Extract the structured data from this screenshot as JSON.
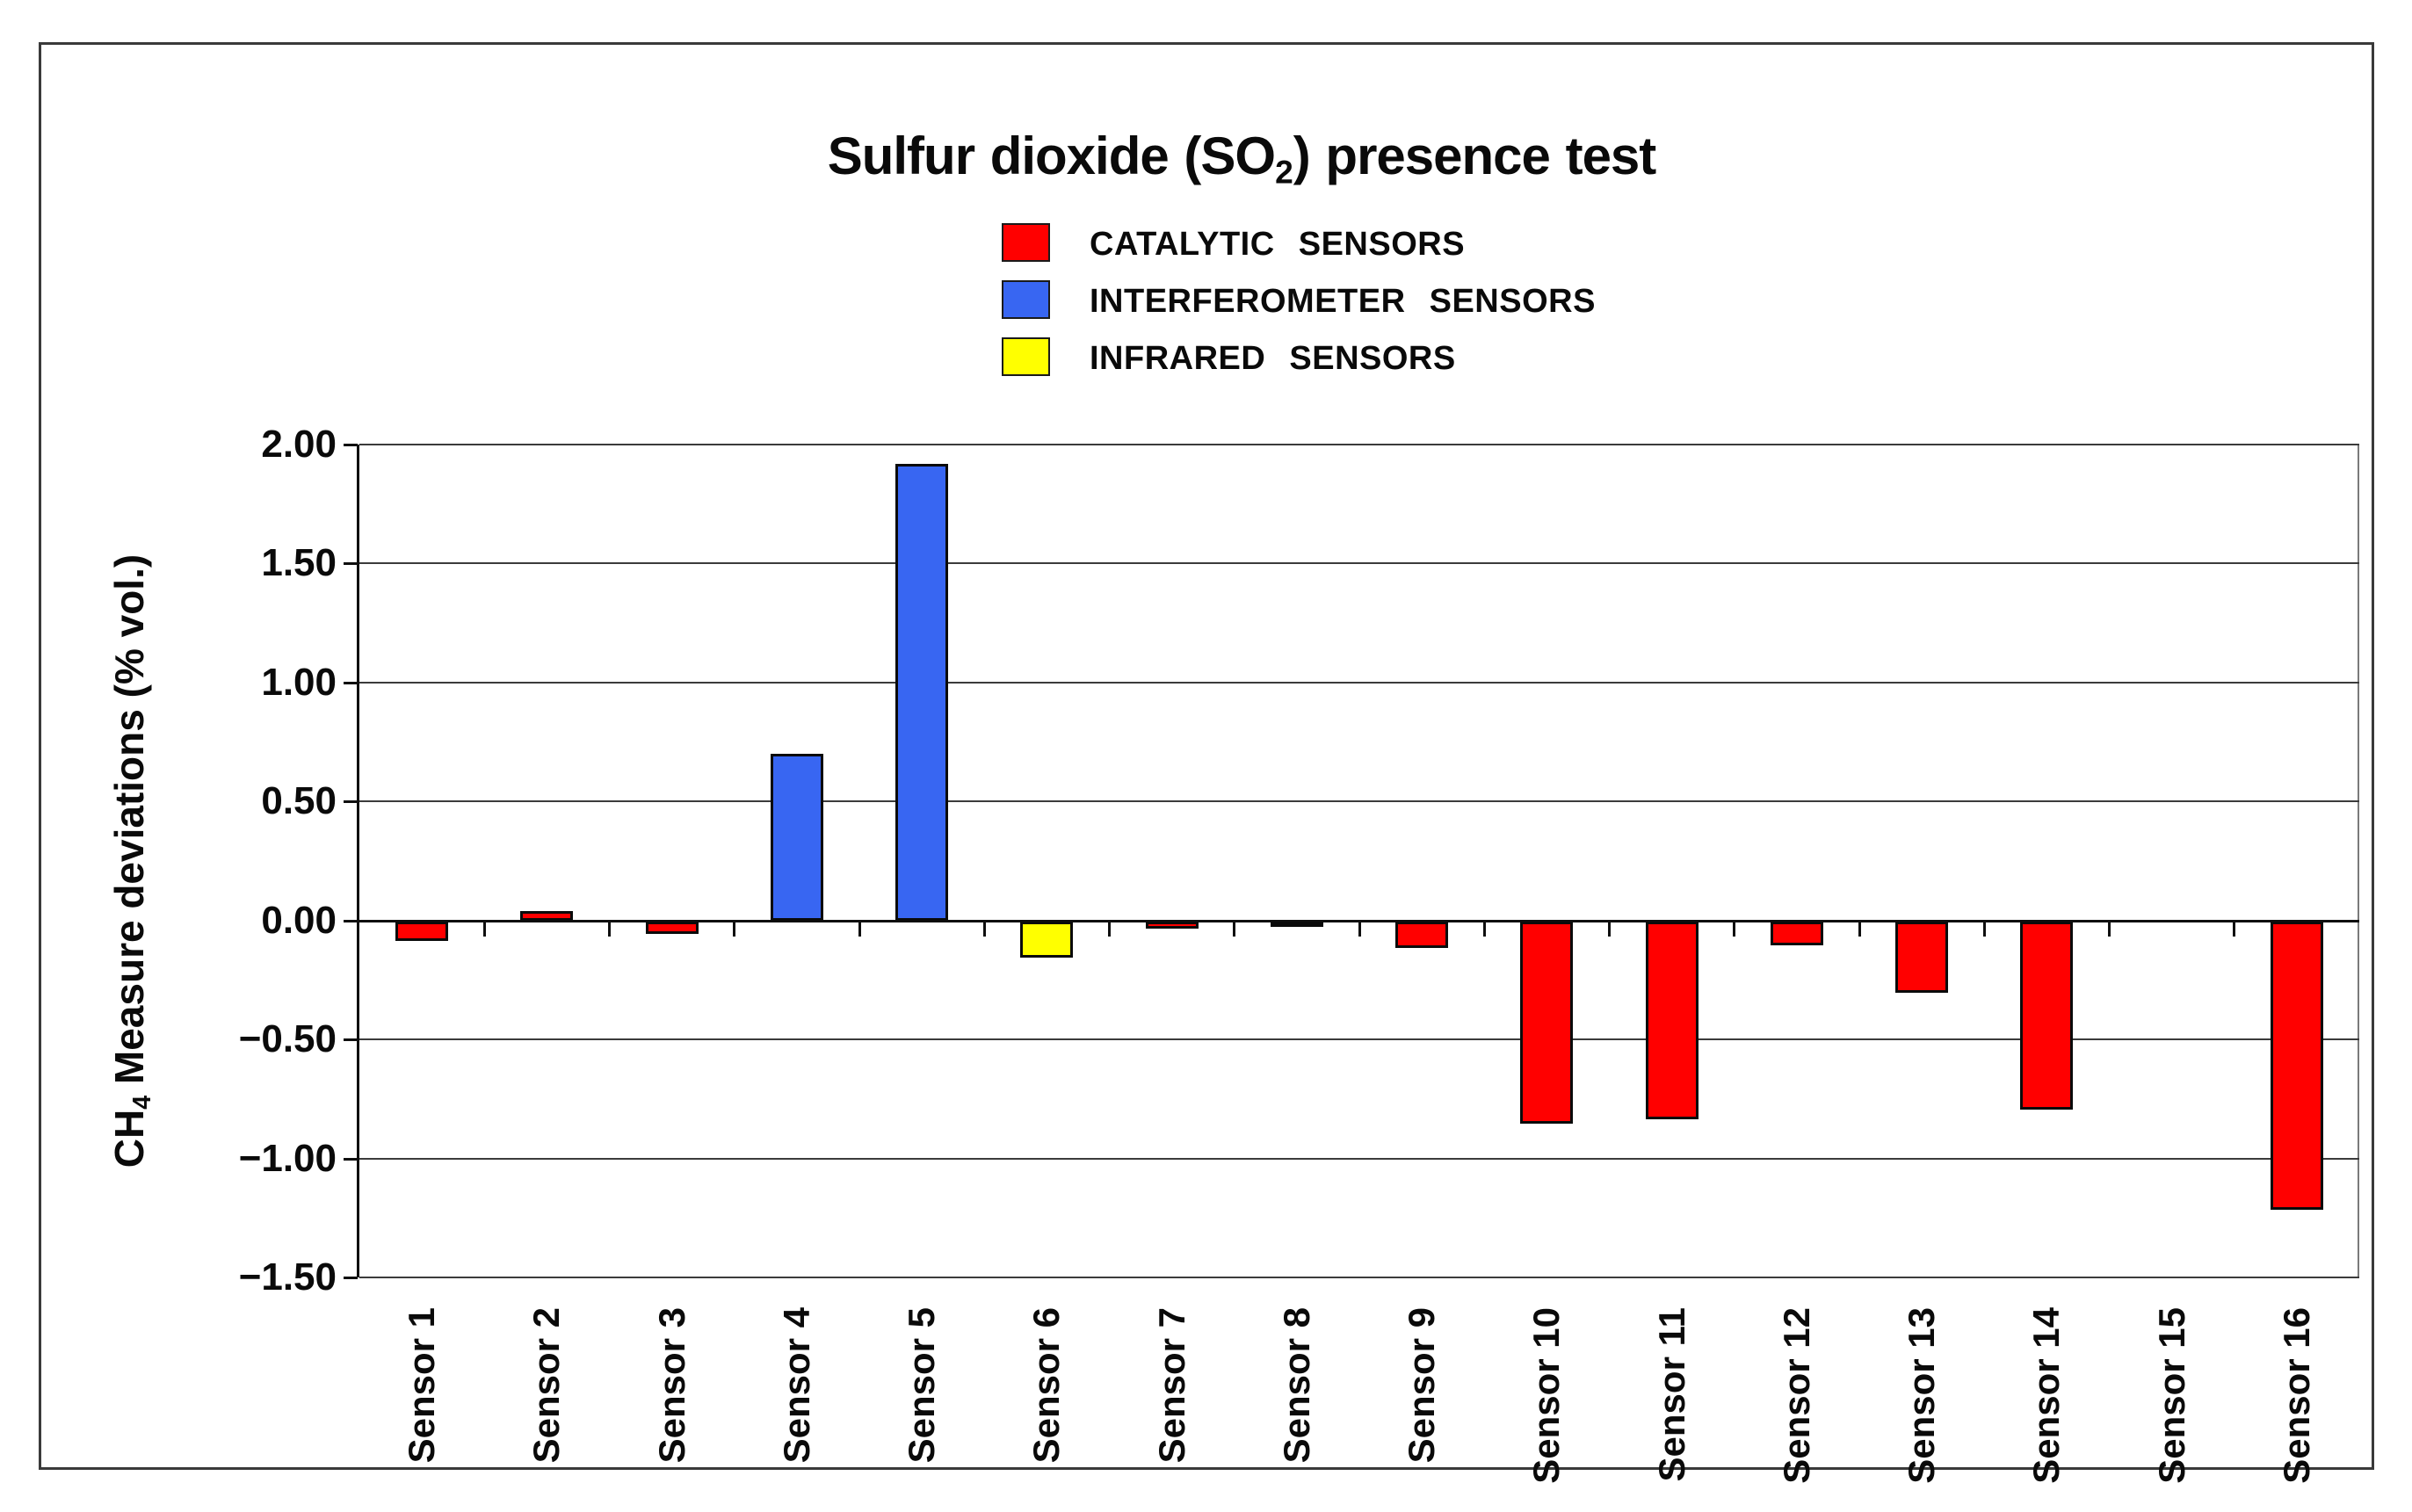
{
  "title": {
    "prefix": "Sulfur dioxide (SO",
    "subscript": "2",
    "suffix": ") presence test"
  },
  "legend": {
    "items": [
      {
        "id": "catalytic",
        "label": "CATALYTIC SENSORS",
        "color": "#FF0000"
      },
      {
        "id": "interferometer",
        "label": "INTERFEROMETER SENSORS",
        "color": "#3866F2"
      },
      {
        "id": "infrared",
        "label": "INFRARED SENSORS",
        "color": "#FFFF00"
      }
    ]
  },
  "y_axis": {
    "title_prefix": "CH",
    "title_subscript": "4",
    "title_suffix": " Measure deviations (% vol.)",
    "tick_labels": [
      "2.00",
      "1.50",
      "1.00",
      "0.50",
      "0.00",
      "-0.50",
      "-1.00",
      "-1.50"
    ]
  },
  "chart_data": {
    "type": "bar",
    "title": "Sulfur dioxide (SO2) presence test",
    "xlabel": "",
    "ylabel": "CH4 Measure deviations (% vol.)",
    "ylim": [
      -1.5,
      2.0
    ],
    "y_step": 0.5,
    "grid": true,
    "legend_position": "top-center",
    "categories": [
      "Sensor 1",
      "Sensor 2",
      "Sensor 3",
      "Sensor 4",
      "Sensor 5",
      "Sensor 6",
      "Sensor 7",
      "Sensor 8",
      "Sensor 9",
      "Sensor 10",
      "Sensor 11",
      "Sensor 12",
      "Sensor 13",
      "Sensor 14",
      "Sensor 15",
      "Sensor 16"
    ],
    "values": [
      -0.08,
      0.04,
      -0.05,
      0.7,
      1.92,
      -0.15,
      -0.03,
      -0.01,
      -0.11,
      -0.85,
      -0.83,
      -0.1,
      -0.3,
      -0.79,
      0.0,
      -1.21
    ],
    "sensor_types": [
      "catalytic",
      "catalytic",
      "catalytic",
      "interferometer",
      "interferometer",
      "infrared",
      "catalytic",
      "catalytic",
      "catalytic",
      "catalytic",
      "catalytic",
      "catalytic",
      "catalytic",
      "catalytic",
      "catalytic",
      "catalytic"
    ],
    "bar_colors": [
      "#FF0000",
      "#FF0000",
      "#FF0000",
      "#3866F2",
      "#3866F2",
      "#FFFF00",
      "#FF0000",
      "#FF0000",
      "#FF0000",
      "#FF0000",
      "#FF0000",
      "#FF0000",
      "#FF0000",
      "#FF0000",
      "#FF0000",
      "#FF0000"
    ]
  },
  "colors": {
    "catalytic": "#FF0000",
    "interferometer": "#3866F2",
    "infrared": "#FFFF00",
    "gridline": "#3b3b3b",
    "axis": "#0f0f0f",
    "frame": "#3a3a3a"
  }
}
